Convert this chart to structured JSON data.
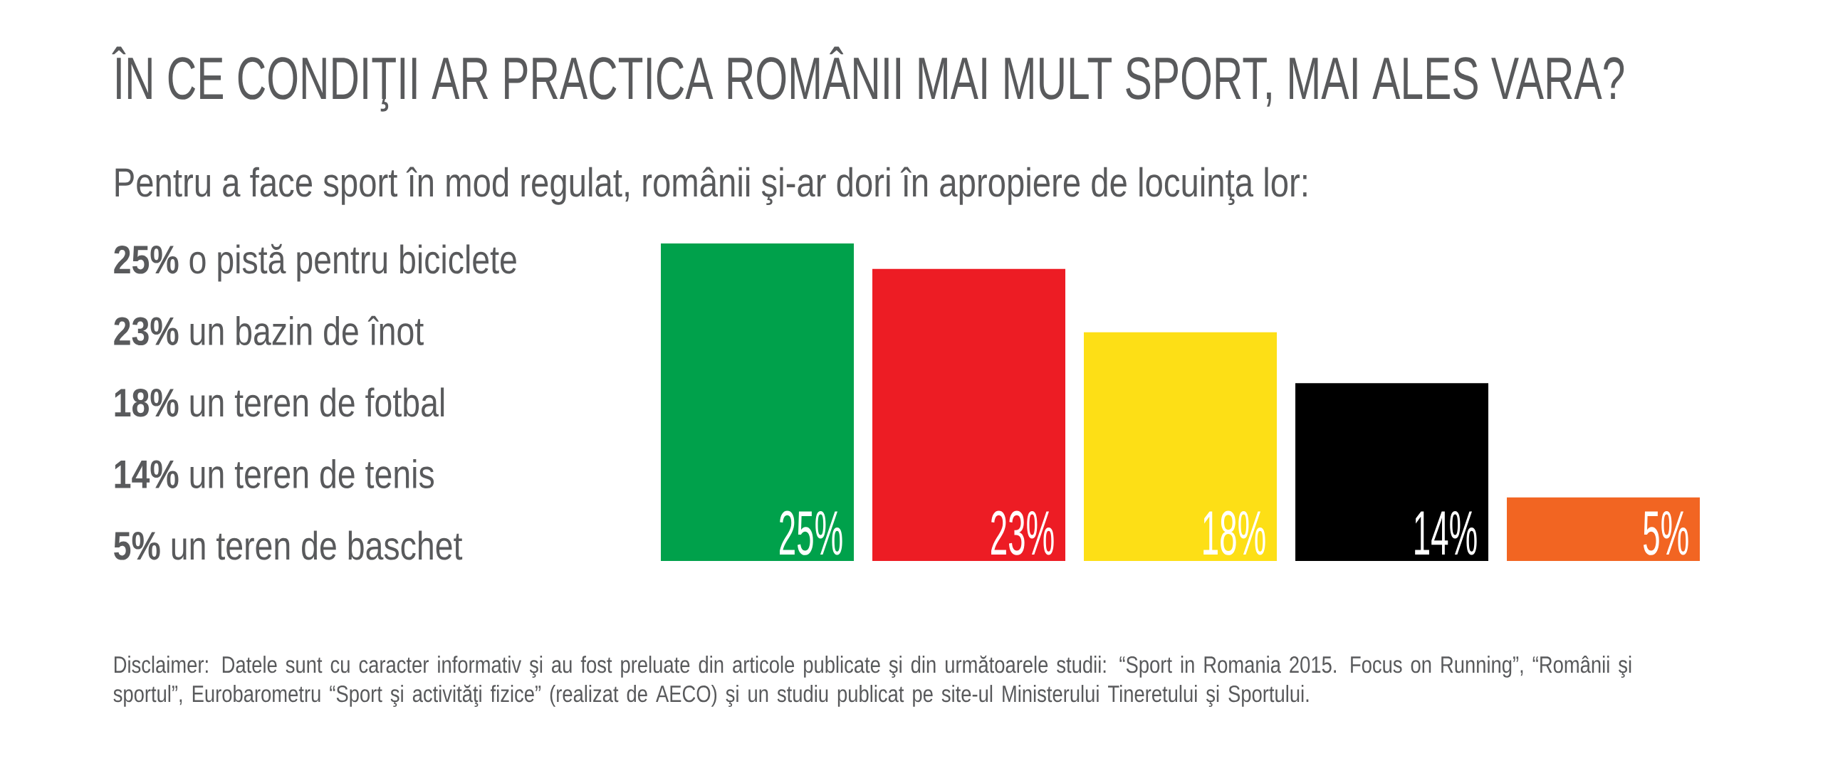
{
  "chart_data": {
    "type": "bar",
    "title": "ÎN CE CONDIŢII AR PRACTICA ROMÂNII MAI MULT SPORT, MAI ALES VARA?",
    "subtitle": "Pentru a face sport în mod regulat, românii şi-ar dori în apropiere de locuinţa lor:",
    "categories": [
      null,
      null,
      null,
      null,
      null
    ],
    "values": [
      25,
      23,
      18,
      14,
      5
    ],
    "colors": [
      "#00a14b",
      "#ed1c24",
      "#fddf16",
      "#000000",
      "#f26522"
    ],
    "value_labels": [
      "25%",
      "23%",
      "18%",
      "14%",
      "5%"
    ],
    "annotations": [
      "**25%** o pistă pentru biciclete",
      "**23%** un bazin de înot",
      "**18%** un teren de fotbal",
      "**14%** un teren de tenis",
      "**5%** un teren de baschet",
      "Disclaimer: Datele sunt cu caracter informativ şi au fost preluate din articole publicate şi din următoarele studii: “Sport in Romania 2015. Focus on Running”, “Românii şi sportul”, Eurobarometru “Sport şi activităţi fizice” (realizat de AECO) şi un studiu publicat pe site-ul Ministerului Tineretului şi Sportului."
    ]
  }
}
